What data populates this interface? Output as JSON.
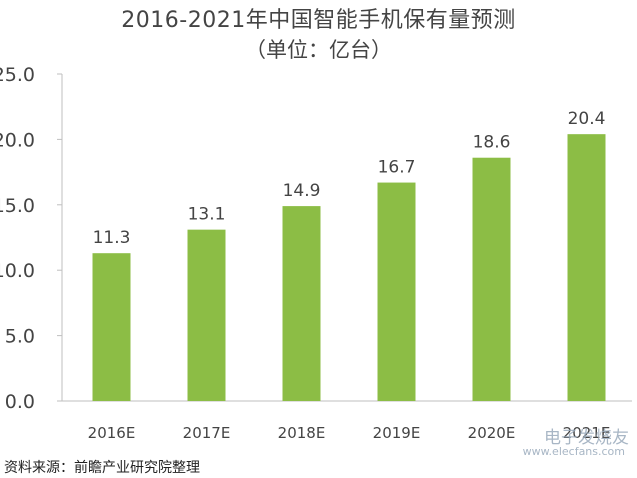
{
  "chart_data": {
    "type": "bar",
    "title": "2016-2021年中国智能手机保有量预测",
    "subtitle": "（单位：亿台）",
    "categories": [
      "2016E",
      "2017E",
      "2018E",
      "2019E",
      "2020E",
      "2021E"
    ],
    "values": [
      11.3,
      13.1,
      14.9,
      16.7,
      18.6,
      20.4
    ],
    "value_labels": [
      "11.3",
      "13.1",
      "14.9",
      "16.7",
      "18.6",
      "20.4"
    ],
    "ylim": [
      0,
      25
    ],
    "yticks": [
      "0.0",
      "5.0",
      "10.0",
      "15.0",
      "20.0",
      "25.0"
    ],
    "ytick_values": [
      0,
      5,
      10,
      15,
      20,
      25
    ],
    "bar_color": "#8cbd45",
    "grid": false,
    "legend": "none"
  },
  "source_text": "资料来源：前瞻产业研究院整理",
  "watermark": {
    "brand": "电子发烧友",
    "url": "www.elecfans.com"
  }
}
